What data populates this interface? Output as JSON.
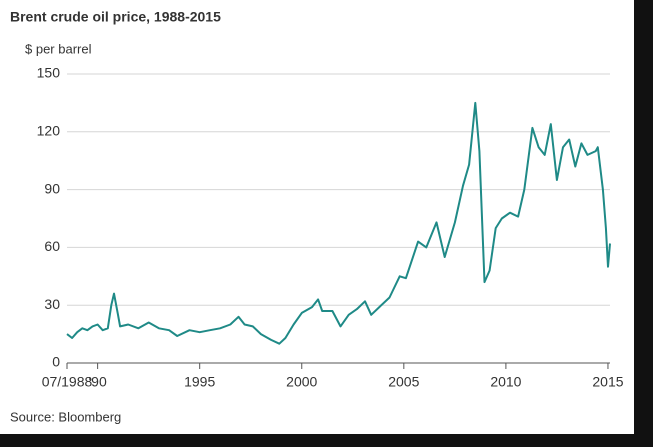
{
  "chart_data": {
    "type": "line",
    "title": "Brent crude oil price, 1988-2015",
    "y_label": "$ per barrel",
    "source": "Source: Bloomberg",
    "x": [
      1988.5,
      1988.75,
      1989.0,
      1989.25,
      1989.5,
      1989.75,
      1990.0,
      1990.25,
      1990.5,
      1990.67,
      1990.8,
      1991.0,
      1991.1,
      1991.5,
      1992.0,
      1992.5,
      1993.0,
      1993.5,
      1993.9,
      1994.5,
      1995.0,
      1995.5,
      1996.0,
      1996.5,
      1996.9,
      1997.2,
      1997.6,
      1998.0,
      1998.5,
      1998.9,
      1999.2,
      1999.6,
      2000.0,
      2000.5,
      2000.8,
      2001.0,
      2001.5,
      2001.9,
      2002.3,
      2002.7,
      2003.1,
      2003.4,
      2003.8,
      2004.3,
      2004.8,
      2005.1,
      2005.7,
      2006.1,
      2006.6,
      2007.0,
      2007.5,
      2007.9,
      2008.2,
      2008.5,
      2008.7,
      2008.95,
      2009.2,
      2009.5,
      2009.8,
      2010.2,
      2010.6,
      2010.9,
      2011.3,
      2011.6,
      2011.9,
      2012.2,
      2012.5,
      2012.8,
      2013.1,
      2013.4,
      2013.7,
      2014.0,
      2014.4,
      2014.5,
      2014.75,
      2014.9,
      2015.0,
      2015.1
    ],
    "series": [
      {
        "name": "Brent crude",
        "color": "#1f8a87",
        "values": [
          15,
          13,
          16,
          18,
          17,
          19,
          20,
          17,
          18,
          30,
          36,
          25,
          19,
          20,
          18,
          21,
          18,
          17,
          14,
          17,
          16,
          17,
          18,
          20,
          24,
          20,
          19,
          15,
          12,
          10,
          13,
          20,
          26,
          29,
          33,
          27,
          27,
          19,
          25,
          28,
          32,
          25,
          29,
          34,
          45,
          44,
          63,
          60,
          73,
          55,
          73,
          92,
          103,
          135,
          110,
          42,
          48,
          70,
          75,
          78,
          76,
          90,
          122,
          112,
          108,
          124,
          95,
          112,
          116,
          102,
          114,
          108,
          110,
          112,
          90,
          70,
          50,
          62
        ]
      }
    ],
    "xlim": [
      1988.5,
      2015.1
    ],
    "xticks": [
      {
        "value": 1988.5,
        "label": "07/1988"
      },
      {
        "value": 1990,
        "label": "'90"
      },
      1995,
      2000,
      2005,
      2010,
      2015
    ],
    "ylim": [
      0,
      150
    ],
    "yticks": [
      0,
      30,
      60,
      90,
      120,
      150
    ],
    "grid": true
  }
}
